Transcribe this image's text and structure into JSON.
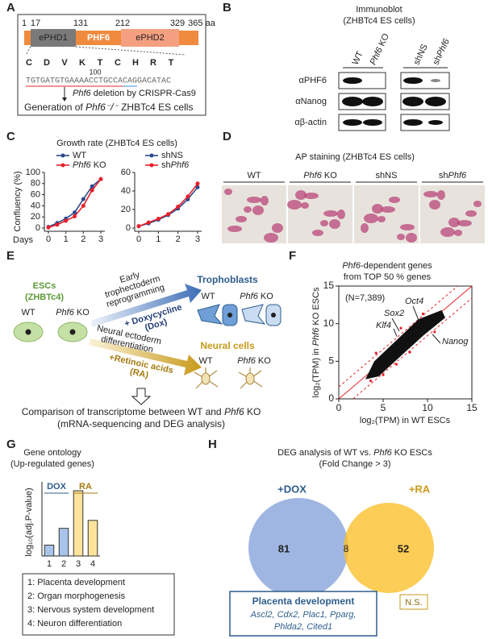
{
  "A": {
    "label": "A",
    "positions": [
      "1",
      "17",
      "131",
      "212",
      "329",
      "365 aa"
    ],
    "domains": [
      "ePHD1",
      "PHF6",
      "ePHD2"
    ],
    "residues": [
      "C",
      "D",
      "V",
      "K",
      "T",
      "C",
      "H",
      "R",
      "T"
    ],
    "residue_number": "100",
    "dna": "TGTGATGTGAAAACCTGCCACAGGACATAC",
    "step": [
      "Phf6",
      " deletion by CRISPR-Cas9"
    ],
    "result": [
      "Generation of ",
      "Phf6⁻/⁻",
      " ZHBTc4 ES cells"
    ]
  },
  "B": {
    "label": "B",
    "title": [
      "Immunoblot",
      "(ZHBTc4 ES cells)"
    ],
    "lanes": [
      [
        "WT"
      ],
      [
        "Phf6",
        " KO"
      ],
      [
        "shNS"
      ],
      [
        "sh",
        "Phf6"
      ]
    ],
    "antibodies": [
      "αPHF6",
      "αNanog",
      "αβ-actin"
    ]
  },
  "C": {
    "label": "C",
    "title": "Growth rate (ZHBTc4 ES cells)",
    "y_label": "Confluency (%)",
    "x_label": "Days",
    "x": [
      0,
      0.5,
      1,
      1.5,
      2,
      2.5,
      3
    ],
    "xlim": [
      0,
      3
    ],
    "xticks": [
      0,
      1,
      2,
      3
    ],
    "left": {
      "ylim": [
        0,
        100
      ],
      "yticks": [
        0,
        20,
        40,
        60,
        80,
        100
      ],
      "series": [
        {
          "name": [
            "WT"
          ],
          "color": "#2e4a8c",
          "values": [
            2,
            9,
            17,
            28,
            52,
            75,
            88
          ]
        },
        {
          "name": [
            "Phf6",
            " KO"
          ],
          "color": "#e8202a",
          "values": [
            1,
            6,
            13,
            21,
            40,
            68,
            88
          ]
        }
      ]
    },
    "right": {
      "ylim": [
        0,
        60
      ],
      "yticks": [
        0,
        20,
        40,
        60
      ],
      "series": [
        {
          "name": [
            "shNS"
          ],
          "color": "#2e4a8c",
          "values": [
            2,
            5,
            9,
            14,
            21,
            31,
            44
          ]
        },
        {
          "name": [
            "sh",
            "Phf6"
          ],
          "color": "#e8202a",
          "values": [
            2,
            6,
            10,
            15,
            23,
            34,
            48
          ]
        }
      ]
    }
  },
  "D": {
    "label": "D",
    "title": "AP staining (ZHBTc4 ES cells)",
    "images": [
      [
        "WT"
      ],
      [
        "Phf6",
        " KO"
      ],
      [
        "shNS"
      ],
      [
        "sh",
        "Phf6"
      ]
    ]
  },
  "E": {
    "label": "E",
    "esc": [
      "ESCs",
      "(ZHBTc4)"
    ],
    "esc_wt": "WT",
    "esc_ko": [
      "Phf6",
      " KO"
    ],
    "upper_arrow_above": [
      "Early",
      "trophectoderm",
      "reprogramming"
    ],
    "upper_arrow_on": [
      "+ Doxycycline",
      "(Dox)"
    ],
    "lower_arrow_above": [
      "Neural ectoderm",
      "differentiation"
    ],
    "lower_arrow_on": [
      "+Retinoic acids",
      "(RA)"
    ],
    "troph": "Trophoblasts",
    "troph_wt": "WT",
    "troph_ko": [
      "Phf6",
      " KO"
    ],
    "neural": "Neural cells",
    "neural_wt": "WT",
    "neural_ko": [
      "Phf6",
      " KO"
    ],
    "comparison": [
      "Comparison of transcriptome between WT and ",
      "Phf6",
      " KO"
    ],
    "comparison_2": "(mRNA-sequencing and DEG analysis)"
  },
  "F": {
    "label": "F",
    "title": [
      [
        "Phf6",
        "-dependent genes"
      ],
      "from TOP 50 % genes"
    ],
    "n": "(N=7,389)",
    "genes": [
      "Oct4",
      "Sox2",
      "Klf4",
      "Nanog"
    ],
    "x_label": "log₂(TPM) in WT ESCs",
    "y_label": [
      "log₂(TPM) in ",
      "Phf6",
      " KO ESCs"
    ],
    "xlim": [
      0,
      15
    ],
    "ylim": [
      0,
      15
    ],
    "xticks": [
      0,
      5,
      10,
      15
    ],
    "yticks": [
      0,
      5,
      10,
      15
    ]
  },
  "G": {
    "label": "G",
    "title": [
      "Gene ontology",
      "(Up-regulated genes)"
    ],
    "y_label": "log₁₀(adj.P-value)",
    "groups": [
      "DOX",
      "RA"
    ],
    "categories": [
      "1",
      "2",
      "3",
      "4"
    ],
    "values": [
      1.1,
      2.8,
      6.6,
      3.6
    ],
    "colors": [
      "#a9c4ea",
      "#a9c4ea",
      "#fde49a",
      "#fde49a"
    ],
    "ylim": [
      0,
      7.5
    ],
    "legend": [
      "1: Placenta development",
      "2: Organ morphogenesis",
      "3: Nervous system development",
      "4: Neuron differentiation"
    ]
  },
  "H": {
    "label": "H",
    "title": [
      [
        "DEG analysis of WT vs. ",
        "Phf6",
        " KO ESCs"
      ],
      "(Fold Change > 3)"
    ],
    "sets": [
      "+DOX",
      "+RA"
    ],
    "counts": [
      81,
      8,
      52
    ],
    "box_title": "Placenta development",
    "genes": [
      "Ascl2, Cdx2, Plac1, Pparg,",
      "Phlda2, Cited1"
    ],
    "ns": "N.S."
  }
}
